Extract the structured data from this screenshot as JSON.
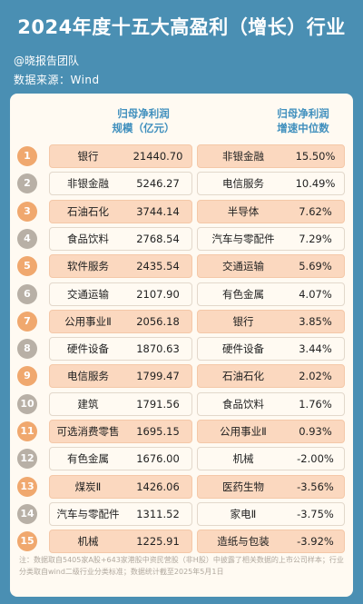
{
  "title": "2024年度十五大高盈利（增长）行业",
  "author": "@晓报告团队",
  "source": "数据来源：Wind",
  "headers": {
    "left_line1": "归母净利润",
    "left_line2": "规模（亿元）",
    "right_line1": "归母净利润",
    "right_line2": "增速中位数"
  },
  "rows": [
    {
      "rank": "1",
      "left_name": "银行",
      "left_value": "21440.70",
      "right_name": "非银金融",
      "right_value": "15.50%"
    },
    {
      "rank": "2",
      "left_name": "非银金融",
      "left_value": "5246.27",
      "right_name": "电信服务",
      "right_value": "10.49%"
    },
    {
      "rank": "3",
      "left_name": "石油石化",
      "left_value": "3744.14",
      "right_name": "半导体",
      "right_value": "7.62%"
    },
    {
      "rank": "4",
      "left_name": "食品饮料",
      "left_value": "2768.54",
      "right_name": "汽车与零配件",
      "right_value": "7.29%"
    },
    {
      "rank": "5",
      "left_name": "软件服务",
      "left_value": "2435.54",
      "right_name": "交通运输",
      "right_value": "5.69%"
    },
    {
      "rank": "6",
      "left_name": "交通运输",
      "left_value": "2107.90",
      "right_name": "有色金属",
      "right_value": "4.07%"
    },
    {
      "rank": "7",
      "left_name": "公用事业Ⅱ",
      "left_value": "2056.18",
      "right_name": "银行",
      "right_value": "3.85%"
    },
    {
      "rank": "8",
      "left_name": "硬件设备",
      "left_value": "1870.63",
      "right_name": "硬件设备",
      "right_value": "3.44%"
    },
    {
      "rank": "9",
      "left_name": "电信服务",
      "left_value": "1799.47",
      "right_name": "石油石化",
      "right_value": "2.02%"
    },
    {
      "rank": "10",
      "left_name": "建筑",
      "left_value": "1791.56",
      "right_name": "食品饮料",
      "right_value": "1.76%"
    },
    {
      "rank": "11",
      "left_name": "可选消费零售",
      "left_value": "1695.15",
      "right_name": "公用事业Ⅱ",
      "right_value": "0.93%"
    },
    {
      "rank": "12",
      "left_name": "有色金属",
      "left_value": "1676.00",
      "right_name": "机械",
      "right_value": "-2.00%"
    },
    {
      "rank": "13",
      "left_name": "煤炭Ⅱ",
      "left_value": "1426.06",
      "right_name": "医药生物",
      "right_value": "-3.56%"
    },
    {
      "rank": "14",
      "left_name": "汽车与零配件",
      "left_value": "1311.52",
      "right_name": "家电Ⅱ",
      "right_value": "-3.75%"
    },
    {
      "rank": "15",
      "left_name": "机械",
      "left_value": "1225.91",
      "right_name": "造纸与包装",
      "right_value": "-3.92%"
    }
  ],
  "footnote": "注：数据取自5405家A股+643家港股中资民营股（非H股）中披露了相关数据的上市公司样本；行业分类取自wind二级行业分类标准；数据统计截至2025年5月1日",
  "colors": {
    "background": "#4a8fb3",
    "card": "#fffaf2",
    "highlight_row": "#fbd8bf",
    "highlight_badge": "#f0a86e",
    "plain_badge": "#b8b0a6",
    "header_text": "#3f8fbd"
  }
}
